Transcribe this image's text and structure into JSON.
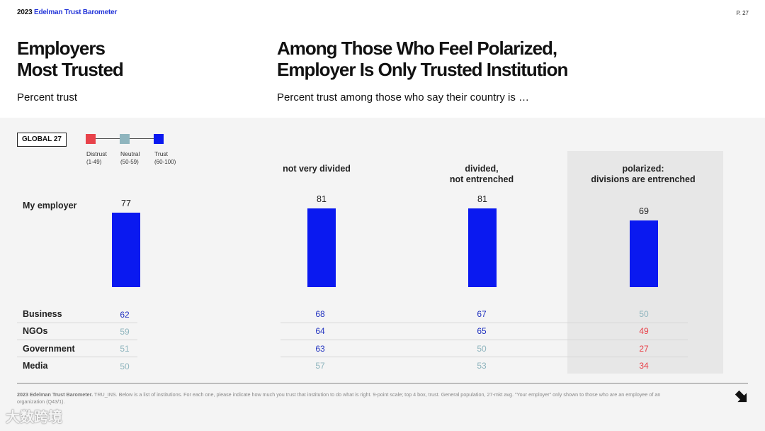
{
  "header": {
    "brand_year": "2023",
    "brand_name": "Edelman Trust Barometer",
    "page_number": "P. 27"
  },
  "left": {
    "title_line1": "Employers",
    "title_line2": "Most Trusted",
    "subtitle": "Percent trust"
  },
  "right": {
    "title_line1": "Among Those Who Feel Polarized,",
    "title_line2": "Employer Is Only Trusted Institution",
    "subtitle": "Percent trust among those who say their country is …"
  },
  "badge": "GLOBAL 27",
  "legend": [
    {
      "label": "Distrust",
      "range": "(1-49)",
      "color": "#e8424a"
    },
    {
      "label": "Neutral",
      "range": "(50-59)",
      "color": "#8fb5be"
    },
    {
      "label": "Trust",
      "range": "(60-100)",
      "color": "#0a19f0"
    }
  ],
  "colors": {
    "trust": "#2233c0",
    "neutral": "#8fb5be",
    "distrust": "#e8424a",
    "bar": "#0a19f0"
  },
  "chart_data": {
    "type": "bar",
    "title": "Among Those Who Feel Polarized, Employer Is Only Trusted Institution",
    "ylabel": "Percent trust",
    "ylim": [
      0,
      100
    ],
    "categories": [
      "GLOBAL 27",
      "not very divided",
      "divided, not entrenched",
      "polarized: divisions are entrenched"
    ],
    "column_headers": [
      {
        "line1": "not very divided",
        "line2": ""
      },
      {
        "line1": "divided,",
        "line2": "not entrenched"
      },
      {
        "line1": "polarized:",
        "line2": "divisions are entrenched"
      }
    ],
    "bar_label": "My employer",
    "series": [
      {
        "name": "My employer",
        "values": [
          77,
          81,
          81,
          69
        ]
      },
      {
        "name": "Business",
        "values": [
          62,
          68,
          67,
          50
        ]
      },
      {
        "name": "NGOs",
        "values": [
          59,
          64,
          65,
          49
        ]
      },
      {
        "name": "Government",
        "values": [
          51,
          63,
          50,
          27
        ]
      },
      {
        "name": "Media",
        "values": [
          50,
          57,
          53,
          34
        ]
      }
    ]
  },
  "footer": {
    "source_bold": "2023 Edelman Trust Barometer.",
    "source_text": " TRU_INS. Below is a list of institutions. For each one, please indicate how much you trust that institution to do what is right. 9-point scale; top 4 box, trust. General population, 27-mkt avg. \"Your employer\" only shown to those who are an employee of an organization (Q43/1)."
  },
  "watermark": "大数跨境"
}
